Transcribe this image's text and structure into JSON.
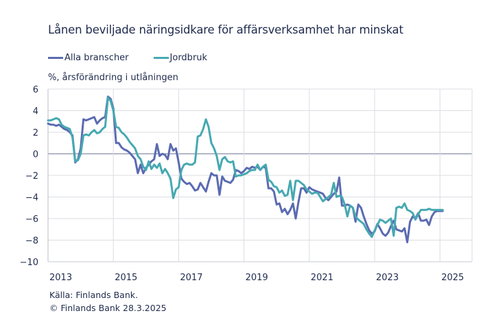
{
  "chart_data": {
    "type": "line",
    "title": "Lånen beviljade näringsidkare för affärsverksamhet har minskat",
    "ylabel": "%, årsförändring i utlåningen",
    "xlabel": "",
    "ylim": [
      -10,
      6
    ],
    "yticks": [
      6,
      4,
      2,
      0,
      -2,
      -4,
      -6,
      -8,
      -10
    ],
    "ytick_labels": [
      "6",
      "4",
      "2",
      "0",
      "−2",
      "−4",
      "−6",
      "−8",
      "−10"
    ],
    "xticks": [
      "2013",
      "2015",
      "2017",
      "2019",
      "2021",
      "2023",
      "2025"
    ],
    "xrange": [
      "2013-01",
      "2025-12"
    ],
    "grid": true,
    "legend_position": "top-left",
    "x_start": "2013-01",
    "x_frequency": "monthly",
    "series": [
      {
        "name": "Alla branscher",
        "color": "#5b6bb1",
        "values": [
          2.8,
          2.7,
          2.7,
          2.6,
          2.7,
          2.5,
          2.3,
          2.2,
          2.0,
          1.7,
          -0.8,
          -0.5,
          0.5,
          3.2,
          3.1,
          3.2,
          3.3,
          3.4,
          2.8,
          3.1,
          3.3,
          3.4,
          5.3,
          5.1,
          4.2,
          1.0,
          1.0,
          0.6,
          0.4,
          0.3,
          0.1,
          -0.2,
          -0.5,
          -1.8,
          -1.0,
          -1.8,
          -1.3,
          -1.0,
          -0.7,
          -0.5,
          0.9,
          -0.2,
          0.0,
          -0.1,
          -0.5,
          0.9,
          0.3,
          0.5,
          -0.8,
          -2.3,
          -2.6,
          -2.8,
          -2.7,
          -3.0,
          -3.4,
          -3.3,
          -2.7,
          -3.1,
          -3.5,
          -2.6,
          -1.8,
          -2.0,
          -2.0,
          -3.8,
          -2.1,
          -2.5,
          -2.6,
          -2.7,
          -2.4,
          -1.5,
          -1.6,
          -1.8,
          -1.6,
          -1.3,
          -1.4,
          -1.2,
          -1.3,
          -1.2,
          -1.5,
          -1.2,
          -1.3,
          -3.2,
          -3.2,
          -3.5,
          -4.7,
          -4.6,
          -5.4,
          -5.1,
          -5.6,
          -5.2,
          -4.6,
          -6.0,
          -4.5,
          -3.2,
          -3.2,
          -3.6,
          -3.1,
          -3.3,
          -3.4,
          -3.5,
          -3.6,
          -3.7,
          -4.1,
          -4.3,
          -4.0,
          -3.7,
          -3.5,
          -2.2,
          -4.8,
          -4.8,
          -4.7,
          -4.8,
          -5.0,
          -6.3,
          -4.7,
          -5.0,
          -5.8,
          -6.5,
          -7.1,
          -7.4,
          -7.2,
          -6.5,
          -6.9,
          -7.4,
          -7.6,
          -7.3,
          -6.7,
          -6.2,
          -7.0,
          -7.1,
          -7.2,
          -6.9,
          -8.2,
          -6.3,
          -5.8,
          -6.0,
          -5.5,
          -6.2,
          -6.2,
          -6.1,
          -6.6,
          -5.8,
          -5.4,
          -5.3,
          -5.3,
          -5.3
        ]
      },
      {
        "name": "Jordbruk",
        "color": "#46a9b1",
        "values": [
          3.1,
          3.1,
          3.2,
          3.3,
          3.2,
          2.7,
          2.5,
          2.4,
          2.3,
          1.5,
          -0.7,
          -0.6,
          0.0,
          1.7,
          1.8,
          1.7,
          2.0,
          2.2,
          1.9,
          2.0,
          2.3,
          2.5,
          5.2,
          4.9,
          4.0,
          2.5,
          2.4,
          2.0,
          1.8,
          1.5,
          1.1,
          0.8,
          0.5,
          -0.2,
          -0.5,
          -1.2,
          -1.5,
          -0.7,
          -1.4,
          -1.0,
          -1.3,
          -0.9,
          -1.8,
          -1.4,
          -1.8,
          -2.3,
          -4.1,
          -3.3,
          -3.1,
          -1.5,
          -1.0,
          -0.9,
          -1.0,
          -1.0,
          -0.8,
          1.6,
          1.7,
          2.3,
          3.2,
          2.5,
          1.0,
          0.5,
          -0.2,
          -1.5,
          -0.5,
          -0.3,
          -0.7,
          -0.8,
          -0.7,
          -2.1,
          -2.0,
          -2.0,
          -1.9,
          -1.8,
          -1.6,
          -1.5,
          -1.5,
          -1.0,
          -1.5,
          -1.2,
          -1.0,
          -2.4,
          -2.6,
          -3.0,
          -3.1,
          -3.6,
          -3.4,
          -3.9,
          -3.8,
          -2.5,
          -4.3,
          -2.5,
          -2.5,
          -2.7,
          -2.9,
          -3.3,
          -3.5,
          -3.7,
          -3.6,
          -3.6,
          -4.0,
          -4.4,
          -4.2,
          -4.0,
          -3.8,
          -2.7,
          -4.0,
          -3.9,
          -4.0,
          -4.7,
          -5.8,
          -4.8,
          -5.0,
          -5.8,
          -6.1,
          -6.3,
          -6.5,
          -7.0,
          -7.4,
          -7.7,
          -7.1,
          -6.6,
          -6.1,
          -6.2,
          -6.4,
          -6.2,
          -6.0,
          -7.6,
          -5.0,
          -4.9,
          -5.0,
          -4.6,
          -5.2,
          -5.3,
          -5.5,
          -6.1,
          -5.6,
          -5.2,
          -5.2,
          -5.2,
          -5.1,
          -5.2,
          -5.2,
          -5.2,
          -5.2,
          -5.2
        ]
      }
    ]
  },
  "legend": [
    {
      "label": "Alla branscher",
      "color": "#5b6bb1"
    },
    {
      "label": "Jordbruk",
      "color": "#46a9b1"
    }
  ],
  "footer": {
    "source": "Källa: Finlands Bank.",
    "copyright": "© Finlands Bank 28.3.2025"
  }
}
